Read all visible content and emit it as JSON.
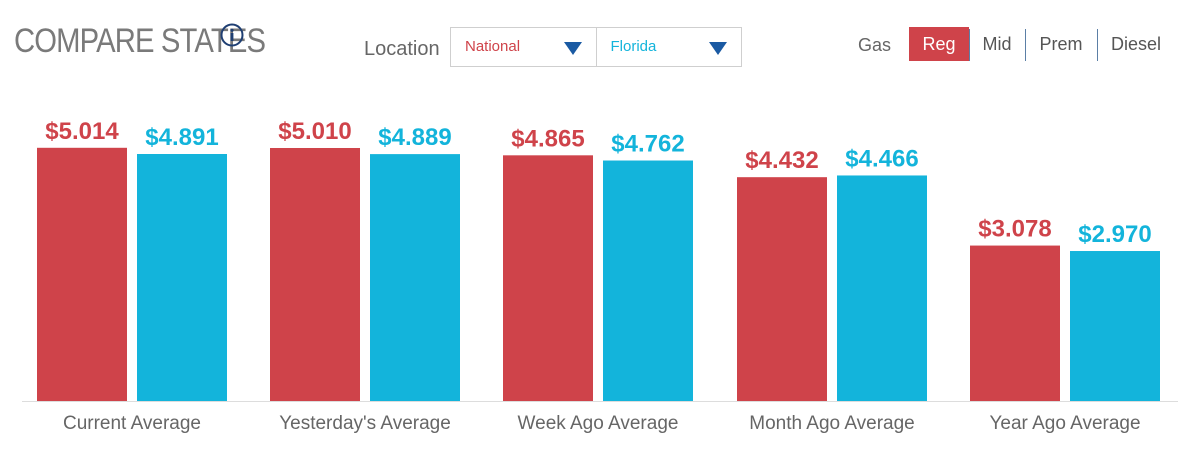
{
  "header": {
    "title": "COMPARE STATES",
    "info_icon": "info-circle-icon"
  },
  "location": {
    "label": "Location",
    "selects": [
      {
        "value": "National",
        "color": "#cf434a",
        "icon": "caret-down-icon"
      },
      {
        "value": "Florida",
        "color": "#13b4db",
        "icon": "caret-down-icon"
      }
    ]
  },
  "fuel": {
    "label": "Gas",
    "tabs": [
      "Reg",
      "Mid",
      "Prem",
      "Diesel"
    ],
    "active": "Reg"
  },
  "chart_data": {
    "type": "bar",
    "categories": [
      "Current Average",
      "Yesterday's Average",
      "Week Ago Average",
      "Month Ago Average",
      "Year Ago Average"
    ],
    "series": [
      {
        "name": "National",
        "color": "#cf434a",
        "values": [
          5.014,
          5.01,
          4.865,
          4.432,
          3.078
        ],
        "labels": [
          "$5.014",
          "$5.010",
          "$4.865",
          "$4.432",
          "$3.078"
        ]
      },
      {
        "name": "Florida",
        "color": "#13b4db",
        "values": [
          4.891,
          4.889,
          4.762,
          4.466,
          2.97
        ],
        "labels": [
          "$4.891",
          "$4.889",
          "$4.762",
          "$4.466",
          "$2.970"
        ]
      }
    ],
    "grid": false,
    "legend": "none"
  }
}
